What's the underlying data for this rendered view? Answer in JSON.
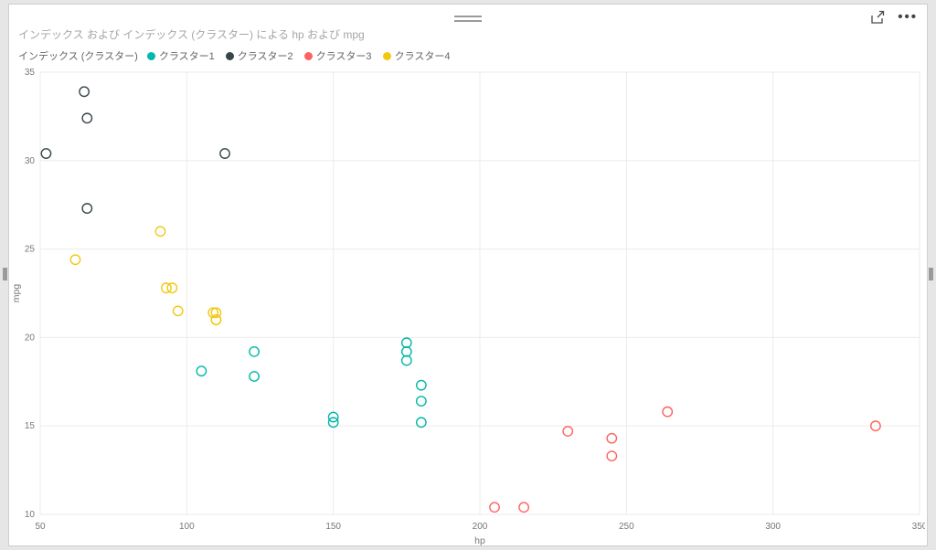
{
  "card": {
    "title": "インデックス および インデックス (クラスター) による hp および mpg"
  },
  "legend": {
    "title": "インデックス (クラスター)",
    "items": [
      {
        "label": "クラスター1",
        "color": "#01B8AA"
      },
      {
        "label": "クラスター2",
        "color": "#374649"
      },
      {
        "label": "クラスター3",
        "color": "#FD625E"
      },
      {
        "label": "クラスター4",
        "color": "#F2C80F"
      }
    ]
  },
  "chart_data": {
    "type": "scatter",
    "title": "インデックス および インデックス (クラスター) による hp および mpg",
    "xlabel": "hp",
    "ylabel": "mpg",
    "xlim": [
      50,
      350
    ],
    "ylim": [
      10,
      35
    ],
    "x_ticks": [
      50,
      100,
      150,
      200,
      250,
      300,
      350
    ],
    "y_ticks": [
      10,
      15,
      20,
      25,
      30,
      35
    ],
    "grid": true,
    "legend_position": "top",
    "marker": "hollow-circle",
    "series": [
      {
        "name": "クラスター1",
        "color": "#01B8AA",
        "points": [
          [
            105,
            18.1
          ],
          [
            123,
            19.2
          ],
          [
            123,
            17.8
          ],
          [
            150,
            15.5
          ],
          [
            150,
            15.2
          ],
          [
            175,
            19.7
          ],
          [
            175,
            19.2
          ],
          [
            175,
            18.7
          ],
          [
            180,
            17.3
          ],
          [
            180,
            16.4
          ],
          [
            180,
            15.2
          ]
        ]
      },
      {
        "name": "クラスター2",
        "color": "#374649",
        "points": [
          [
            52,
            30.4
          ],
          [
            65,
            33.9
          ],
          [
            66,
            32.4
          ],
          [
            66,
            27.3
          ],
          [
            113,
            30.4
          ]
        ]
      },
      {
        "name": "クラスター3",
        "color": "#FD625E",
        "points": [
          [
            205,
            10.4
          ],
          [
            215,
            10.4
          ],
          [
            230,
            14.7
          ],
          [
            245,
            14.3
          ],
          [
            245,
            13.3
          ],
          [
            264,
            15.8
          ],
          [
            335,
            15.0
          ]
        ]
      },
      {
        "name": "クラスター4",
        "color": "#F2C80F",
        "points": [
          [
            62,
            24.4
          ],
          [
            91,
            26.0
          ],
          [
            93,
            22.8
          ],
          [
            95,
            22.8
          ],
          [
            97,
            21.5
          ],
          [
            109,
            21.4
          ],
          [
            110,
            21.4
          ],
          [
            110,
            21.0
          ],
          [
            110,
            21.0
          ]
        ]
      }
    ]
  }
}
